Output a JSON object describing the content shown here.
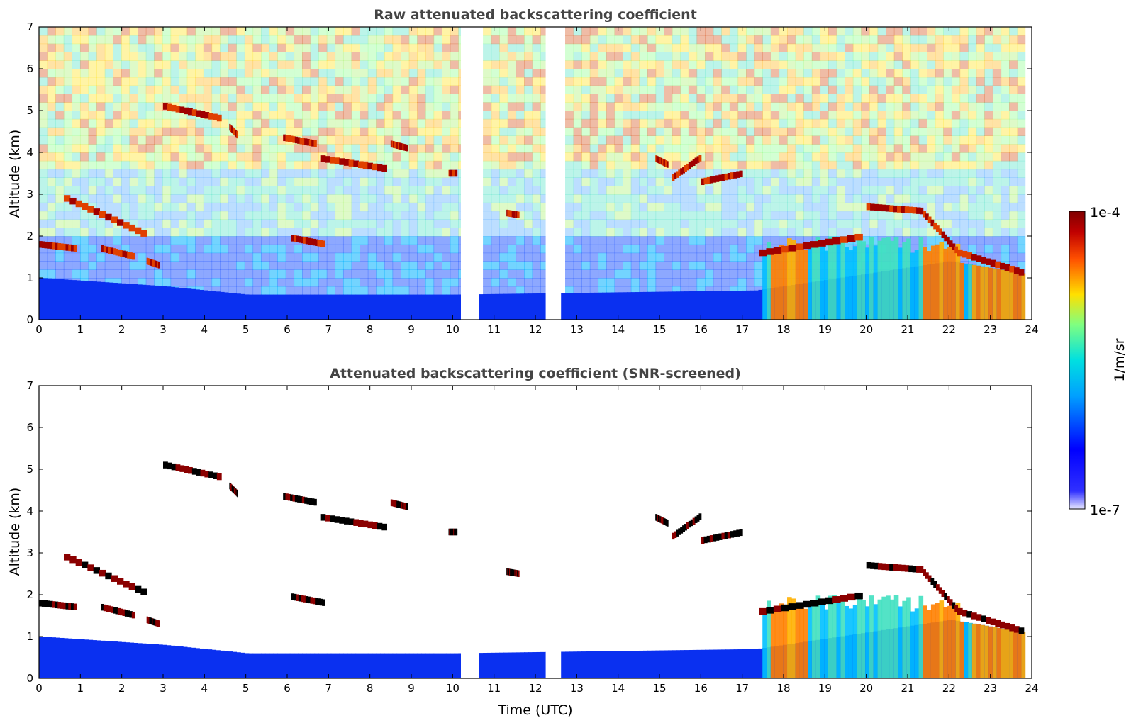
{
  "chart_data": [
    {
      "type": "heatmap",
      "title": "Raw attenuated backscattering coefficient",
      "xlabel": "",
      "ylabel": "Altitude (km)",
      "xlim": [
        0,
        24
      ],
      "ylim": [
        0,
        7
      ],
      "xticks": [
        "0",
        "1",
        "2",
        "3",
        "4",
        "5",
        "6",
        "7",
        "8",
        "9",
        "10",
        "11",
        "12",
        "13",
        "14",
        "15",
        "16",
        "17",
        "18",
        "19",
        "20",
        "21",
        "22",
        "23",
        "24"
      ],
      "yticks": [
        "0",
        "1",
        "2",
        "3",
        "4",
        "5",
        "6",
        "7"
      ],
      "data_gaps_hours": [
        [
          10.2,
          10.6
        ],
        [
          12.25,
          12.6
        ]
      ],
      "cloud_layers": [
        {
          "t_start": 0.0,
          "t_end": 0.9,
          "alt_start_km": 1.8,
          "alt_end_km": 1.7
        },
        {
          "t_start": 0.6,
          "t_end": 2.6,
          "alt_start_km": 2.9,
          "alt_end_km": 2.0
        },
        {
          "t_start": 1.5,
          "t_end": 2.3,
          "alt_start_km": 1.7,
          "alt_end_km": 1.5
        },
        {
          "t_start": 2.6,
          "t_end": 2.9,
          "alt_start_km": 1.4,
          "alt_end_km": 1.3
        },
        {
          "t_start": 3.0,
          "t_end": 4.4,
          "alt_start_km": 5.1,
          "alt_end_km": 4.8
        },
        {
          "t_start": 4.6,
          "t_end": 4.8,
          "alt_start_km": 4.6,
          "alt_end_km": 4.4
        },
        {
          "t_start": 5.9,
          "t_end": 6.7,
          "alt_start_km": 4.35,
          "alt_end_km": 4.2
        },
        {
          "t_start": 6.8,
          "t_end": 8.4,
          "alt_start_km": 3.85,
          "alt_end_km": 3.6
        },
        {
          "t_start": 8.5,
          "t_end": 8.9,
          "alt_start_km": 4.2,
          "alt_end_km": 4.1
        },
        {
          "t_start": 6.1,
          "t_end": 6.9,
          "alt_start_km": 1.95,
          "alt_end_km": 1.8
        },
        {
          "t_start": 9.9,
          "t_end": 10.1,
          "alt_start_km": 3.5,
          "alt_end_km": 3.5
        },
        {
          "t_start": 11.3,
          "t_end": 11.6,
          "alt_start_km": 2.55,
          "alt_end_km": 2.5
        },
        {
          "t_start": 14.9,
          "t_end": 15.2,
          "alt_start_km": 3.85,
          "alt_end_km": 3.7
        },
        {
          "t_start": 15.3,
          "t_end": 16.0,
          "alt_start_km": 3.4,
          "alt_end_km": 3.9
        },
        {
          "t_start": 16.0,
          "t_end": 17.0,
          "alt_start_km": 3.3,
          "alt_end_km": 3.5
        },
        {
          "t_start": 17.4,
          "t_end": 19.9,
          "alt_start_km": 1.6,
          "alt_end_km": 2.0
        },
        {
          "t_start": 20.0,
          "t_end": 21.3,
          "alt_start_km": 2.7,
          "alt_end_km": 2.6
        },
        {
          "t_start": 21.3,
          "t_end": 22.2,
          "alt_start_km": 2.6,
          "alt_end_km": 1.6
        },
        {
          "t_start": 22.2,
          "t_end": 23.8,
          "alt_start_km": 1.6,
          "alt_end_km": 1.1
        }
      ],
      "boundary_layer_top_km": [
        {
          "t": 0,
          "alt_km": 1.0
        },
        {
          "t": 3,
          "alt_km": 0.8
        },
        {
          "t": 5,
          "alt_km": 0.6
        },
        {
          "t": 10,
          "alt_km": 0.6
        },
        {
          "t": 17.3,
          "alt_km": 0.7
        },
        {
          "t": 20,
          "alt_km": 1.1
        },
        {
          "t": 22,
          "alt_km": 1.4
        },
        {
          "t": 23.8,
          "alt_km": 1.1
        }
      ]
    },
    {
      "type": "heatmap",
      "title": "Attenuated backscattering coefficient (SNR-screened)",
      "xlabel": "Time (UTC)",
      "ylabel": "Altitude (km)",
      "xlim": [
        0,
        24
      ],
      "ylim": [
        0,
        7
      ],
      "xticks": [
        "0",
        "1",
        "2",
        "3",
        "4",
        "5",
        "6",
        "7",
        "8",
        "9",
        "10",
        "11",
        "12",
        "13",
        "14",
        "15",
        "16",
        "17",
        "18",
        "19",
        "20",
        "21",
        "22",
        "23",
        "24"
      ],
      "yticks": [
        "0",
        "1",
        "2",
        "3",
        "4",
        "5",
        "6",
        "7"
      ],
      "data_gaps_hours": [
        [
          10.2,
          10.6
        ],
        [
          12.25,
          12.6
        ]
      ]
    }
  ],
  "colorbar": {
    "label": "1/m/sr",
    "max_label": "1e-4",
    "min_label": "1e-7",
    "scale": "log",
    "colormap": "jet",
    "colors": [
      "#e8e8ff",
      "#0000ff",
      "#00a0ff",
      "#00e0e0",
      "#80ff80",
      "#ffe000",
      "#ff6000",
      "#c00000",
      "#800000"
    ]
  }
}
